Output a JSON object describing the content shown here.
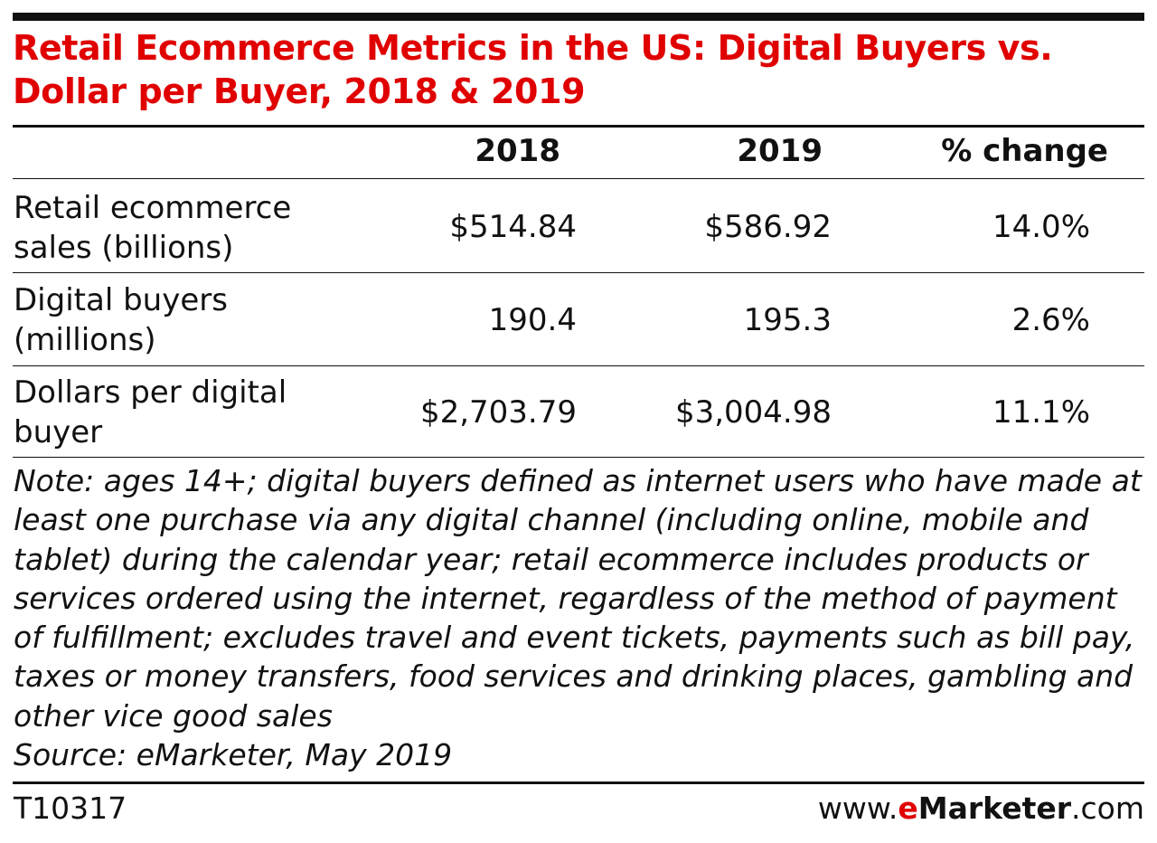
{
  "chart_data": {
    "type": "table",
    "title": "Retail Ecommerce Metrics in the US: Digital Buyers vs. Dollar per Buyer, 2018 & 2019",
    "columns": [
      "2018",
      "2019",
      "% change"
    ],
    "rows": [
      {
        "label_line1": "Retail ecommerce",
        "label_line2": "sales (billions)",
        "values": [
          "$514.84",
          "$586.92",
          "14.0%"
        ]
      },
      {
        "label_line1": "Digital buyers",
        "label_line2": "(millions)",
        "values": [
          "190.4",
          "195.3",
          "2.6%"
        ]
      },
      {
        "label_line1": "Dollars per digital",
        "label_line2": "buyer",
        "values": [
          "$2,703.79",
          "$3,004.98",
          "11.1%"
        ]
      }
    ],
    "note": "Note: ages 14+; digital buyers defined as internet users who have made at least one purchase via any digital channel (including online, mobile and tablet) during the calendar year; retail ecommerce includes products or services ordered using the internet, regardless of the method of payment of fulfillment; excludes travel and event tickets, payments such as bill pay, taxes or money transfers, food services and drinking places, gambling and other vice good sales",
    "source": "Source: eMarketer, May 2019"
  },
  "footer": {
    "chart_id": "T10317",
    "brand_prefix": "www.",
    "brand_e": "e",
    "brand_name": "Marketer",
    "brand_suffix": ".com"
  },
  "colors": {
    "accent": "#e00000",
    "text": "#111111"
  }
}
